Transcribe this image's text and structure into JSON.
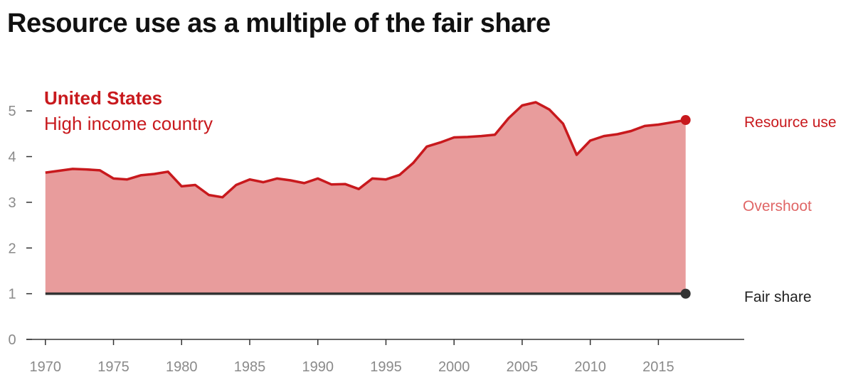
{
  "title": "Resource use as a multiple of the fair share",
  "colors": {
    "line": "#c8191d",
    "area": "#e89c9c",
    "overshoot_text": "#e06666",
    "fair_share": "#333333",
    "axis": "#333333",
    "tick_text": "#8a8a8a"
  },
  "chart_data": {
    "type": "area",
    "title": "Resource use as a multiple of the fair share",
    "xlabel": "",
    "ylabel": "",
    "xlim": [
      1968.6,
      2021.3
    ],
    "ylim": [
      0,
      5.5
    ],
    "x_ticks": [
      1970,
      1975,
      1980,
      1985,
      1990,
      1995,
      2000,
      2005,
      2010,
      2015
    ],
    "y_ticks": [
      0,
      1,
      2,
      3,
      4,
      5
    ],
    "grid": false,
    "annotations": {
      "country": "United States",
      "income_group": "High income country",
      "resource_use_label": "Resource use",
      "overshoot_label": "Overshoot",
      "fair_share_label": "Fair share"
    },
    "fair_share": 1,
    "series": [
      {
        "name": "Resource use",
        "x": [
          1970,
          1971,
          1972,
          1973,
          1974,
          1975,
          1976,
          1977,
          1978,
          1979,
          1980,
          1981,
          1982,
          1983,
          1984,
          1985,
          1986,
          1987,
          1988,
          1989,
          1990,
          1991,
          1992,
          1993,
          1994,
          1995,
          1996,
          1997,
          1998,
          1999,
          2000,
          2001,
          2002,
          2003,
          2004,
          2005,
          2006,
          2007,
          2008,
          2009,
          2010,
          2011,
          2012,
          2013,
          2014,
          2015,
          2016,
          2017
        ],
        "values": [
          3.65,
          3.69,
          3.73,
          3.72,
          3.7,
          3.52,
          3.5,
          3.59,
          3.62,
          3.67,
          3.35,
          3.38,
          3.16,
          3.11,
          3.38,
          3.5,
          3.44,
          3.52,
          3.48,
          3.42,
          3.52,
          3.39,
          3.4,
          3.29,
          3.52,
          3.5,
          3.6,
          3.86,
          4.22,
          4.31,
          4.42,
          4.43,
          4.45,
          4.48,
          4.84,
          5.12,
          5.19,
          5.03,
          4.72,
          4.04,
          4.35,
          4.45,
          4.49,
          4.56,
          4.67,
          4.7,
          4.75,
          4.8
        ]
      }
    ]
  }
}
